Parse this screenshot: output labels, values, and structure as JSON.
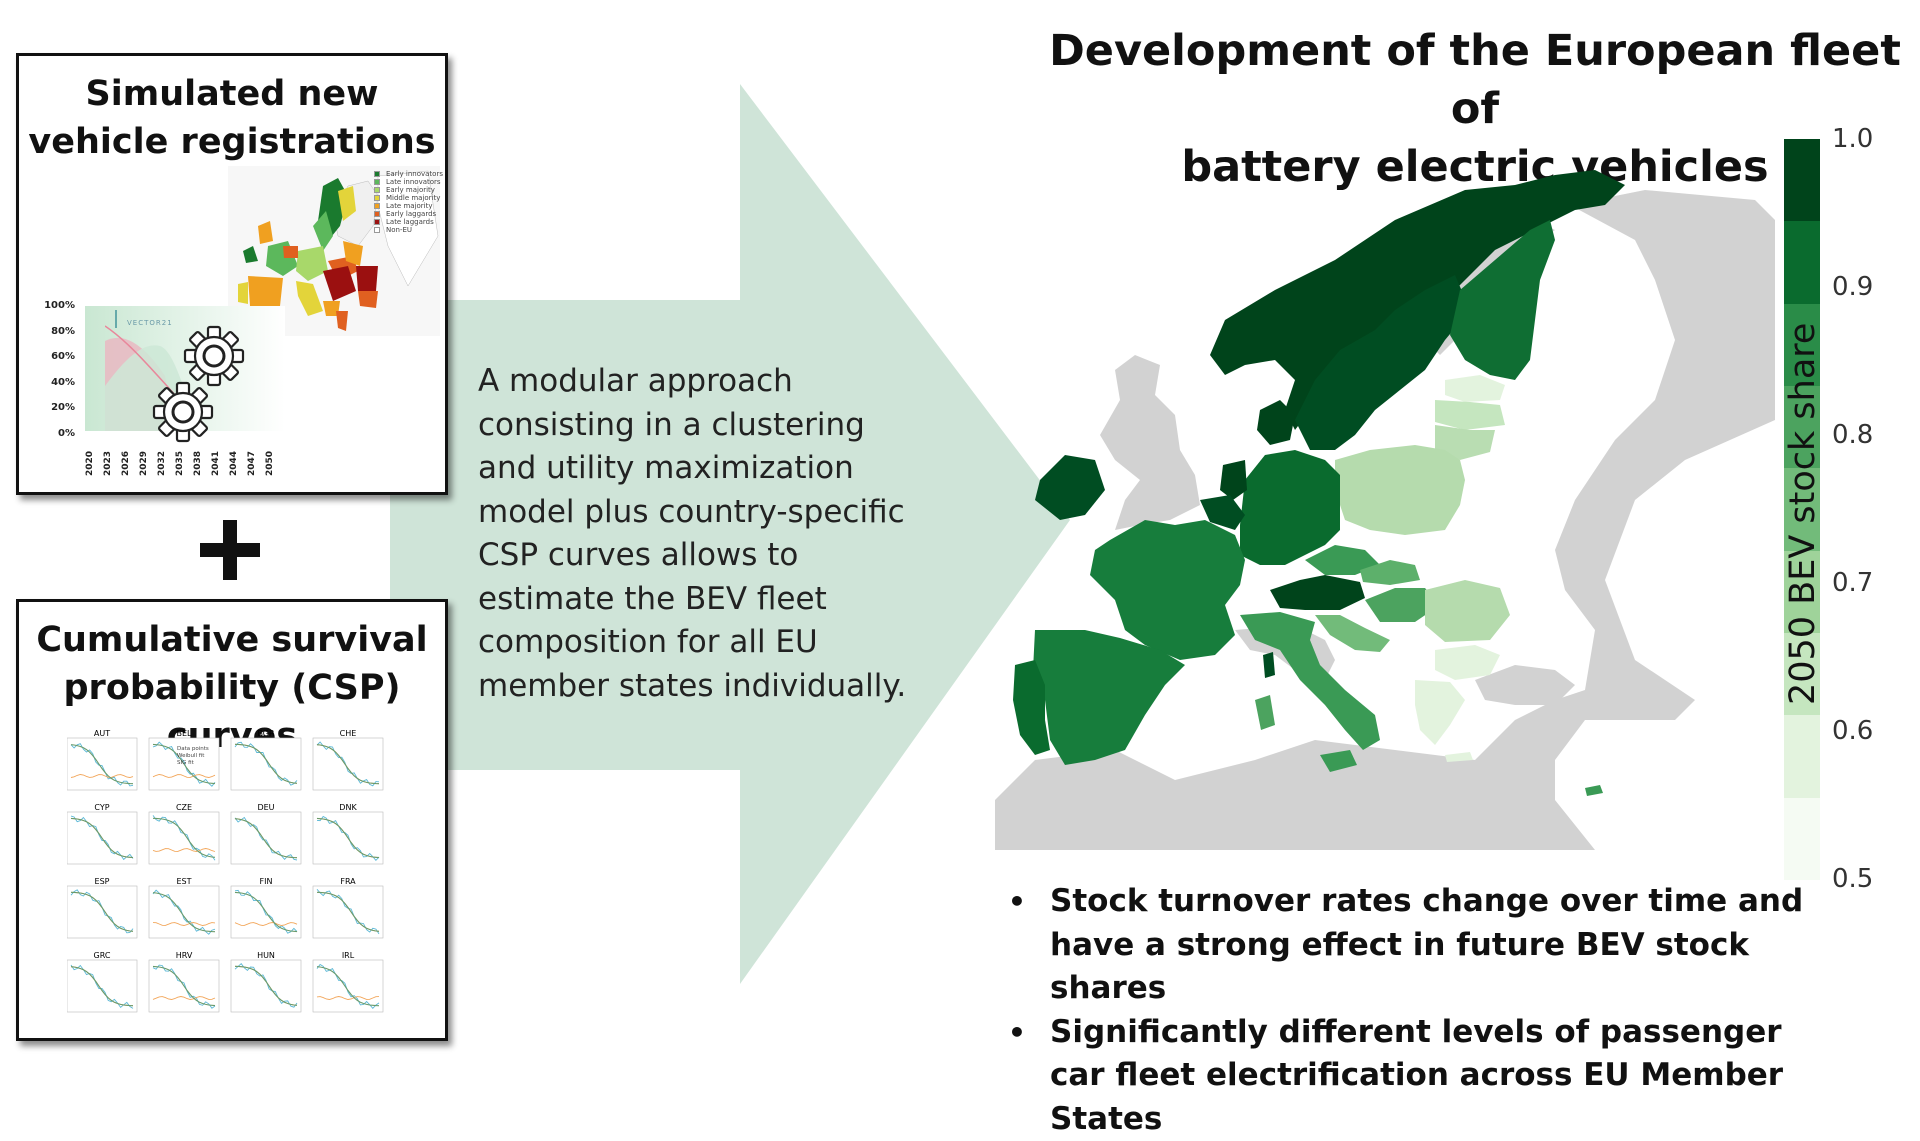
{
  "left_panel_top": {
    "title_line1": "Simulated new",
    "title_line2": "vehicle registrations",
    "map_legend": [
      "Early innovators",
      "Late innovators",
      "Early majority",
      "Middle majority",
      "Late majority",
      "Early laggards",
      "Late laggards",
      "Non-EU"
    ],
    "map_legend_colors": [
      "#1a7a2e",
      "#5cb85c",
      "#a8d86a",
      "#e3d43a",
      "#f0a020",
      "#e06020",
      "#9b1010",
      "#ffffff"
    ],
    "logo_text": "VECTOR21",
    "y_ticks": [
      "100%",
      "80%",
      "60%",
      "40%",
      "20%",
      "0%"
    ],
    "x_ticks": [
      "2020",
      "2023",
      "2026",
      "2029",
      "2032",
      "2035",
      "2038",
      "2041",
      "2044",
      "2047",
      "2050"
    ],
    "gear_icon": "gear-icon"
  },
  "plus_icon": "plus-icon",
  "left_panel_bottom": {
    "title_line1": "Cumulative survival",
    "title_line2": "probability (CSP) curves",
    "subplot_titles": [
      "AUT",
      "BEL",
      "BGR",
      "CHE",
      "CYP",
      "CZE",
      "DEU",
      "DNK",
      "ESP",
      "EST",
      "FIN",
      "FRA",
      "GRC",
      "HRV",
      "HUN",
      "IRL"
    ],
    "subplot_legend": [
      "Data points",
      "Weibull fit",
      "SIG fit"
    ]
  },
  "description": "A modular approach consisting in a clustering and utility maximization model plus country-specific CSP curves allows to estimate the BEV fleet composition for all EU member states individually.",
  "main_title_line1": "Development of the European fleet of",
  "main_title_line2": "battery electric vehicles",
  "colorbar": {
    "label": "2050 BEV stock share",
    "ticks": [
      "1.0",
      "0.9",
      "0.8",
      "0.7",
      "0.6",
      "0.5"
    ],
    "colors": [
      "#00441b",
      "#0a6b2e",
      "#2a8c48",
      "#4ca35f",
      "#72bb7a",
      "#9fd39a",
      "#c5e6bf",
      "#e3f3de",
      "#f5fbf3"
    ]
  },
  "bullets": [
    "Stock turnover rates change over time and have a strong effect in future BEV stock shares",
    "Significantly different levels of passenger car fleet electrification across EU Member States"
  ],
  "colors": {
    "arrow": "#cfe4d8",
    "non_eu": "#d2d2d2",
    "panel_border": "#111111"
  }
}
